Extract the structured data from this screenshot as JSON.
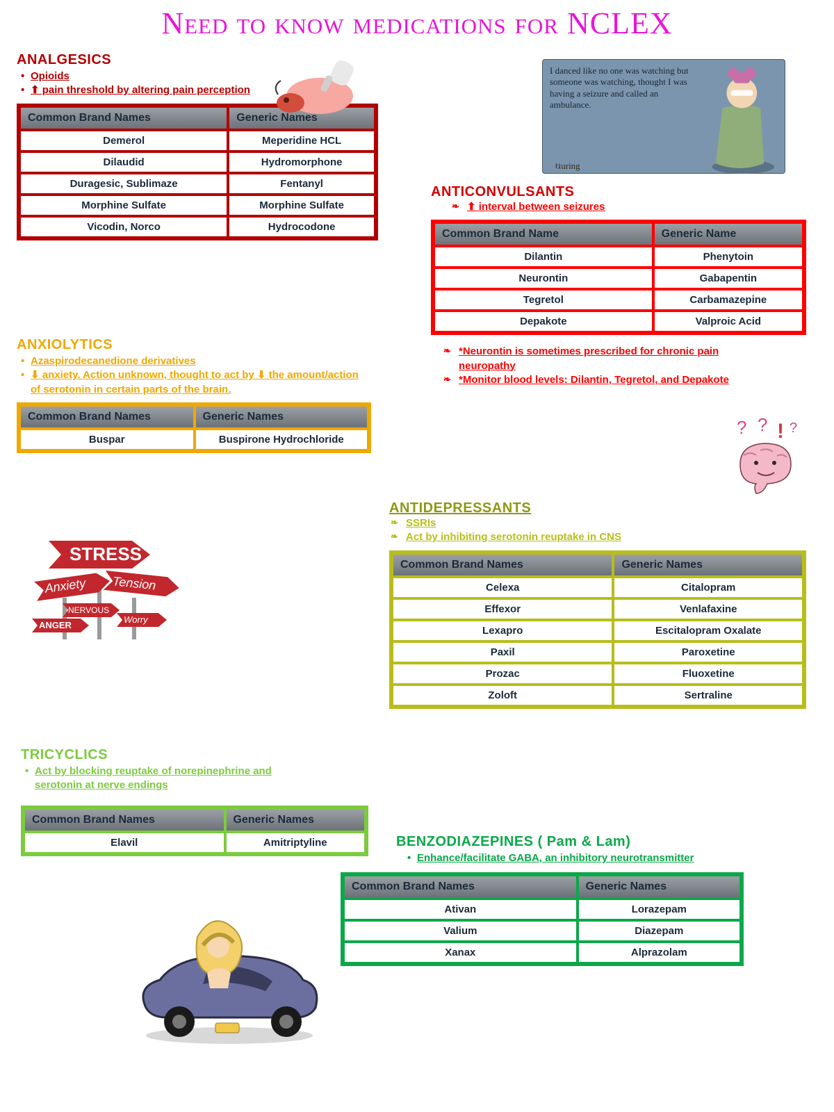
{
  "title": "Need to know medications for NCLEX",
  "title_color": "#e815d6",
  "analgesics": {
    "heading": "ANALGESICS",
    "color": "#b30000",
    "bullets": [
      "Opioids",
      "⬆ pain threshold by altering pain perception"
    ],
    "col1": "Common Brand Names",
    "col2": "Generic Names",
    "rows": [
      [
        "Demerol",
        "Meperidine HCL"
      ],
      [
        "Dilaudid",
        "Hydromorphone"
      ],
      [
        "Duragesic, Sublimaze",
        "Fentanyl"
      ],
      [
        "Morphine Sulfate",
        "Morphine Sulfate"
      ],
      [
        "Vicodin, Norco",
        "Hydrocodone"
      ]
    ]
  },
  "anticonvulsants": {
    "heading": "ANTICONVULSANTS",
    "color": "#ff0000",
    "bullets": [
      "⬆ interval between seizures"
    ],
    "col1": "Common Brand Name",
    "col2": "Generic Name",
    "rows": [
      [
        "Dilantin",
        "Phenytoin"
      ],
      [
        "Neurontin",
        "Gabapentin"
      ],
      [
        "Tegretol",
        "Carbamazepine"
      ],
      [
        "Depakote",
        "Valproic Acid"
      ]
    ],
    "notes": [
      "*Neurontin is sometimes prescribed for chronic pain neuropathy",
      "*Monitor blood levels: Dilantin, Tegretol, and Depakote"
    ]
  },
  "anxiolytics": {
    "heading": "ANXIOLYTICS",
    "color": "#f0a800",
    "bullets": [
      "Azaspirodecanedione derivatives",
      "⬇ anxiety. Action unknown, thought to act by ⬇ the amount/action of serotonin in certain parts of the brain."
    ],
    "col1": "Common Brand Names",
    "col2": "Generic Names",
    "rows": [
      [
        "Buspar",
        "Buspirone Hydrochloride"
      ]
    ]
  },
  "antidepressants": {
    "heading": "ANTIDEPRESSANTS",
    "color": "#b8bd1a",
    "title_color": "#8f9812",
    "bullets": [
      "SSRIs",
      "Act by inhibiting serotonin reuptake in CNS"
    ],
    "col1": "Common Brand Names",
    "col2": "Generic Names",
    "rows": [
      [
        "Celexa",
        "Citalopram"
      ],
      [
        "Effexor",
        "Venlafaxine"
      ],
      [
        "Lexapro",
        "Escitalopram Oxalate"
      ],
      [
        "Paxil",
        "Paroxetine"
      ],
      [
        "Prozac",
        "Fluoxetine"
      ],
      [
        "Zoloft",
        "Sertraline"
      ]
    ]
  },
  "tricyclics": {
    "heading": "TRICYCLICS",
    "color": "#7ccb3e",
    "bullets": [
      "Act by blocking reuptake of norepinephrine and serotonin at nerve endings"
    ],
    "col1": "Common Brand Names",
    "col2": "Generic Names",
    "rows": [
      [
        "Elavil",
        "Amitriptyline"
      ]
    ]
  },
  "benzo": {
    "heading": "BENZODIAZEPINES ( Pam & Lam)",
    "color": "#0ba84a",
    "bullets": [
      "Enhance/facilitate GABA, an inhibitory neurotransmitter"
    ],
    "col1": "Common Brand Names",
    "col2": "Generic Names",
    "rows": [
      [
        "Ativan",
        "Lorazepam"
      ],
      [
        "Valium",
        "Diazepam"
      ],
      [
        "Xanax",
        "Alprazolam"
      ]
    ]
  },
  "cartoon_caption": "I danced like no one was watching but someone was watching, thought I was having a seizure and called an ambulance.",
  "stress_words": [
    "STRESS",
    "Anxiety",
    "Tension",
    "NERVOUS",
    "ANGER",
    "Worry"
  ]
}
